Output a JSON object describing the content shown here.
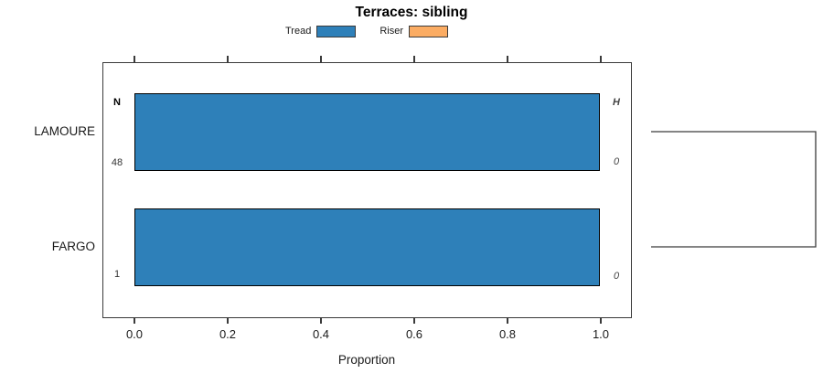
{
  "title": "Terraces: sibling",
  "legend": {
    "items": [
      {
        "label": "Tread",
        "color": "#2e80b9"
      },
      {
        "label": "Riser",
        "color": "#fbac63"
      }
    ]
  },
  "y_axis": {
    "categories": [
      "LAMOURE",
      "FARGO"
    ]
  },
  "x_axis": {
    "label": "Proportion",
    "ticks": [
      "0.0",
      "0.2",
      "0.4",
      "0.6",
      "0.8",
      "1.0"
    ]
  },
  "panel": {
    "left_header": "N",
    "right_header": "H",
    "rows": [
      {
        "category": "LAMOURE",
        "n": "48",
        "h": "0"
      },
      {
        "category": "FARGO",
        "n": "1",
        "h": "0"
      }
    ]
  },
  "colors": {
    "tread": "#2e80b9",
    "riser": "#fbac63",
    "line": "#3a3a3a"
  },
  "chart_data": {
    "type": "bar",
    "orientation": "horizontal",
    "title": "Terraces: sibling",
    "categories": [
      "LAMOURE",
      "FARGO"
    ],
    "series": [
      {
        "name": "Tread",
        "color": "#2e80b9",
        "values": [
          1.0,
          1.0
        ]
      },
      {
        "name": "Riser",
        "color": "#fbac63",
        "values": [
          0.0,
          0.0
        ]
      }
    ],
    "annotations": {
      "left_column_header": "N",
      "right_column_header": "H",
      "N_values": [
        48,
        1
      ],
      "H_values": [
        0,
        0
      ]
    },
    "xlabel": "Proportion",
    "ylabel": "",
    "xlim": [
      0.0,
      1.0
    ],
    "xticks": [
      0.0,
      0.2,
      0.4,
      0.6,
      0.8,
      1.0
    ],
    "grid": false,
    "legend_position": "top-center",
    "right_panel": "dendrogram bracket joining LAMOURE and FARGO rows"
  }
}
